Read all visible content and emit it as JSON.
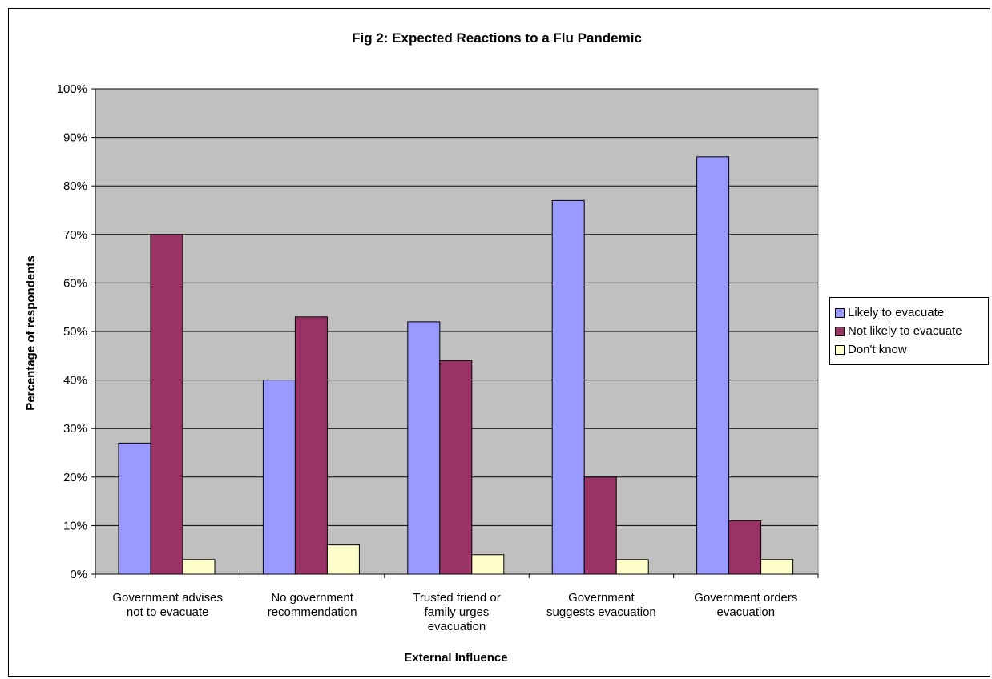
{
  "chart_data": {
    "type": "bar",
    "title": "Fig 2: Expected Reactions to a Flu Pandemic",
    "xlabel": "External Influence",
    "ylabel": "Percentage of respondents",
    "ylim": [
      0,
      100
    ],
    "yticks": [
      "0%",
      "10%",
      "20%",
      "30%",
      "40%",
      "50%",
      "60%",
      "70%",
      "80%",
      "90%",
      "100%"
    ],
    "categories": [
      "Government advises\nnot to evacuate",
      "No government\nrecommendation",
      "Trusted friend or\nfamily urges\nevacuation",
      "Government\nsuggests evacuation",
      "Government orders\nevacuation"
    ],
    "series": [
      {
        "name": "Likely to evacuate",
        "color": "#9999ff",
        "values": [
          27,
          40,
          52,
          77,
          86
        ]
      },
      {
        "name": "Not likely to evacuate",
        "color": "#993366",
        "values": [
          70,
          53,
          44,
          20,
          11
        ]
      },
      {
        "name": "Don't know",
        "color": "#ffffcc",
        "values": [
          3,
          6,
          4,
          3,
          3
        ]
      }
    ],
    "grid": true,
    "plot_background": "#c0c0c0",
    "legend_position": "right"
  }
}
